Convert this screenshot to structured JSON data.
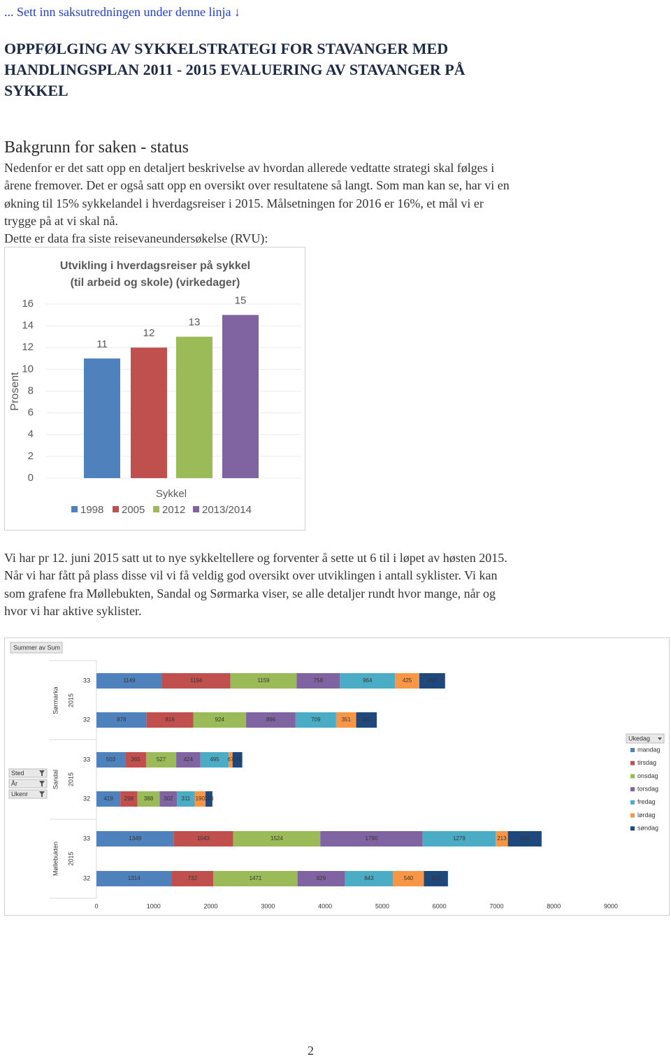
{
  "header": {
    "link": "... Sett inn saksutredningen under denne linja ↓",
    "title": [
      "OPPFØLGING AV SYKKELSTRATEGI FOR STAVANGER MED",
      "HANDLINGSPLAN 2011 - 2015 EVALUERING AV STAVANGER PÅ",
      "SYKKEL"
    ]
  },
  "section_heading": "Bakgrunn for saken - status",
  "paragraphs": [
    [
      "Nedenfor er det satt opp en detaljert beskrivelse av hvordan allerede vedtatte strategi skal følges i",
      "årene fremover. Det er også satt opp en oversikt over resultatene så langt. Som man kan se, har vi en",
      "økning til 15% sykkelandel i hverdagsreiser i 2015. Målsetningen for 2016 er 16%, et mål vi er",
      "trygge på at vi skal nå."
    ],
    [
      "Dette er data fra siste reisevaneundersøkelse (RVU):"
    ],
    [
      "Vi har pr 12. juni 2015 satt ut to nye sykkeltellere og forventer å sette ut 6 til i løpet av høsten 2015.",
      "Når vi har fått på plass disse vil vi få veldig god oversikt over utviklingen i antall syklister. Vi kan",
      "som grafene fra Møllebukten, Sandal og Sørmarka viser, se alle detaljer rundt hvor mange, når og",
      "hvor vi har aktive syklister."
    ]
  ],
  "chart_data": [
    {
      "type": "bar",
      "title": [
        "Utvikling i hverdagsreiser på sykkel",
        "(til arbeid og skole) (virkedager)"
      ],
      "ylabel": "Prosent",
      "categories": [
        "Sykkel"
      ],
      "series": [
        {
          "name": "1998",
          "color": "#4f81bd",
          "values": [
            11
          ]
        },
        {
          "name": "2005",
          "color": "#c0504d",
          "values": [
            12
          ]
        },
        {
          "name": "2012",
          "color": "#9bbb59",
          "values": [
            13
          ]
        },
        {
          "name": "2013/2014",
          "color": "#8064a2",
          "values": [
            15
          ]
        }
      ],
      "ylim": [
        0,
        16
      ],
      "yticks": [
        0,
        2,
        4,
        6,
        8,
        10,
        12,
        14,
        16
      ],
      "grid": true,
      "legend": "bottom"
    },
    {
      "type": "barh",
      "field_button": "Summer av Sum",
      "filters": [
        "Sted",
        "År",
        "Ukenr"
      ],
      "legend_title": "Ukedag",
      "groups": [
        {
          "name": "Sørmarka",
          "year": "2015"
        },
        {
          "name": "Sandal",
          "year": "2015"
        },
        {
          "name": "Møllebukten",
          "year": "2015"
        }
      ],
      "categories": [
        "33",
        "32",
        "33",
        "32",
        "33",
        "32"
      ],
      "series": [
        {
          "name": "mandag",
          "color": "#4f81bd",
          "values": [
            1149,
            878,
            503,
            419,
            1349,
            1314
          ]
        },
        {
          "name": "tirsdag",
          "color": "#c0504d",
          "values": [
            1194,
            816,
            365,
            298,
            1043,
            732
          ]
        },
        {
          "name": "onsdag",
          "color": "#9bbb59",
          "values": [
            1159,
            924,
            527,
            388,
            1524,
            1471
          ]
        },
        {
          "name": "torsdag",
          "color": "#8064a2",
          "values": [
            758,
            866,
            424,
            302,
            1790,
            829
          ]
        },
        {
          "name": "fredag",
          "color": "#4bacc6",
          "values": [
            964,
            709,
            495,
            311,
            1279,
            843
          ]
        },
        {
          "name": "lørdag",
          "color": "#f79646",
          "values": [
            425,
            351,
            67,
            190,
            213,
            540
          ]
        },
        {
          "name": "søndag",
          "color": "#1f497d",
          "values": [
            450,
            360,
            170,
            120,
            590,
            420
          ]
        }
      ],
      "xlim": [
        0,
        9000
      ],
      "xticks": [
        0,
        1000,
        2000,
        3000,
        4000,
        5000,
        6000,
        7000,
        8000,
        9000
      ],
      "grid": false,
      "legend": "right"
    }
  ],
  "page_number": "2"
}
